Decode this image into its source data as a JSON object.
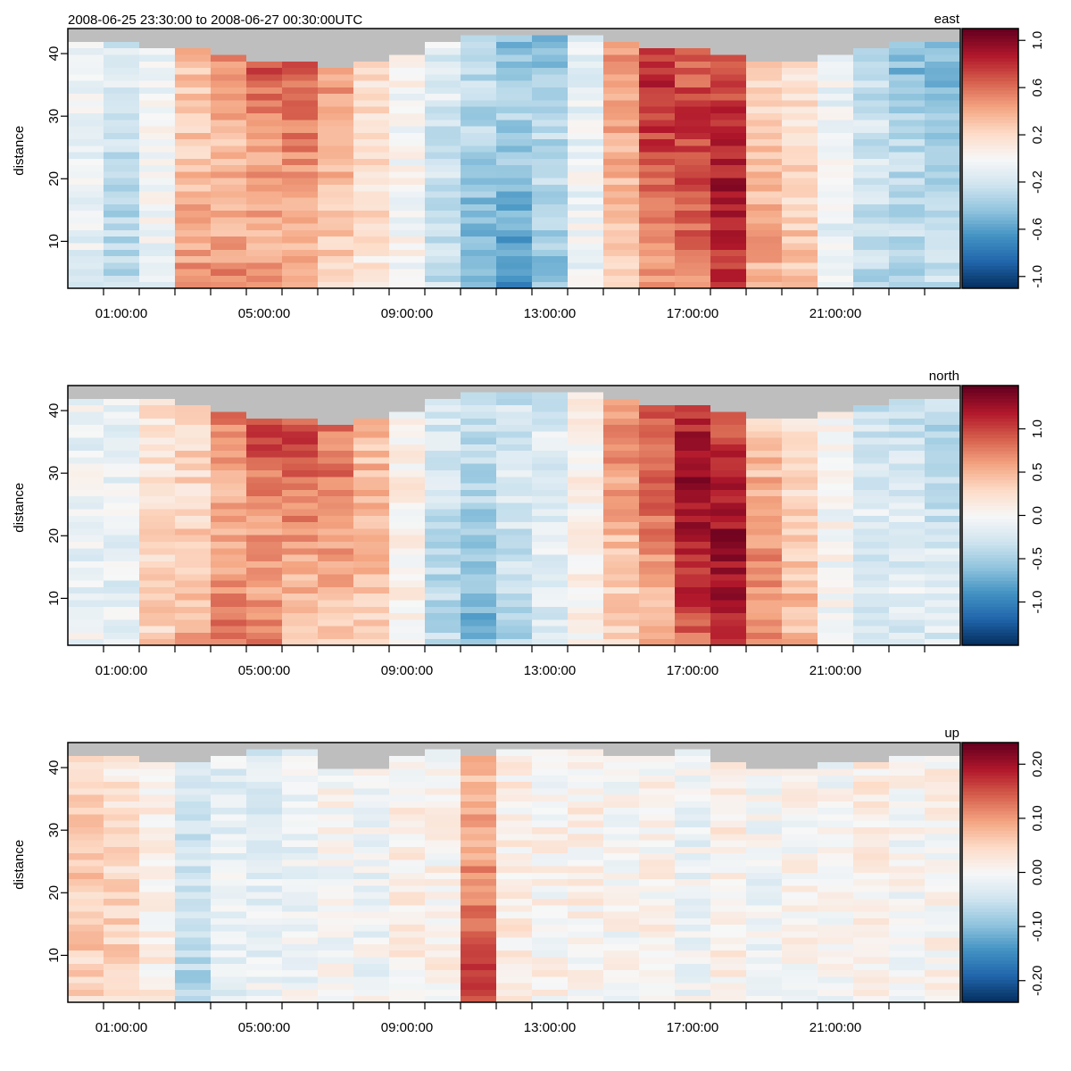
{
  "figure_title": "2008-06-25 23:30:00 to 2008-06-27 00:30:00UTC",
  "chart_data": [
    {
      "type": "heatmap",
      "name": "east",
      "title": "east",
      "ylabel": "distance",
      "xlabel": "",
      "time_ticks_hours": [
        0.5,
        1.5,
        2.5,
        3.5,
        4.5,
        5.5,
        6.5,
        7.5,
        8.5,
        9.5,
        10.5,
        11.5,
        12.5,
        13.5,
        14.5,
        15.5,
        16.5,
        17.5,
        18.5,
        19.5,
        20.5,
        21.5,
        22.5,
        23.5
      ],
      "time_labels": [
        {
          "hour": 1,
          "text": "01:00:00"
        },
        {
          "hour": 5,
          "text": "05:00:00"
        },
        {
          "hour": 9,
          "text": "09:00:00"
        },
        {
          "hour": 13,
          "text": "13:00:00"
        },
        {
          "hour": 17,
          "text": "17:00:00"
        },
        {
          "hour": 21,
          "text": "21:00:00"
        }
      ],
      "y_ticks": [
        10,
        20,
        30,
        40
      ],
      "ylim": [
        2.5,
        44
      ],
      "zlim": [
        -1.1,
        1.1
      ],
      "colorbar_ticks": [
        {
          "value": -1.0,
          "text": "-1.0"
        },
        {
          "value": -0.6,
          "text": "-0.6"
        },
        {
          "value": -0.2,
          "text": "-0.2"
        },
        {
          "value": 0.2,
          "text": "0.2"
        },
        {
          "value": 0.6,
          "text": "0.6"
        },
        {
          "value": 1.0,
          "text": "1.0"
        }
      ],
      "ensemble_count": 25,
      "ensemble_start_hour": -0.5,
      "column_profiles": [
        -0.1,
        -0.3,
        -0.05,
        0.55,
        0.7,
        0.8,
        0.7,
        0.45,
        0.2,
        0.0,
        -0.25,
        -0.55,
        -0.75,
        -0.6,
        -0.1,
        0.5,
        0.8,
        0.75,
        0.9,
        0.4,
        0.3,
        -0.1,
        -0.4,
        -0.55,
        -0.5
      ],
      "column_max_valid_distance": [
        42,
        42,
        41,
        41,
        40,
        39,
        39,
        38,
        39,
        40,
        42,
        43,
        43,
        43,
        43,
        42,
        41,
        41,
        40,
        39,
        39,
        40,
        41,
        42,
        42
      ]
    },
    {
      "type": "heatmap",
      "name": "north",
      "title": "north",
      "ylabel": "distance",
      "xlabel": "",
      "time_ticks_hours": [
        0.5,
        1.5,
        2.5,
        3.5,
        4.5,
        5.5,
        6.5,
        7.5,
        8.5,
        9.5,
        10.5,
        11.5,
        12.5,
        13.5,
        14.5,
        15.5,
        16.5,
        17.5,
        18.5,
        19.5,
        20.5,
        21.5,
        22.5,
        23.5
      ],
      "time_labels": [
        {
          "hour": 1,
          "text": "01:00:00"
        },
        {
          "hour": 5,
          "text": "05:00:00"
        },
        {
          "hour": 9,
          "text": "09:00:00"
        },
        {
          "hour": 13,
          "text": "13:00:00"
        },
        {
          "hour": 17,
          "text": "17:00:00"
        },
        {
          "hour": 21,
          "text": "21:00:00"
        }
      ],
      "y_ticks": [
        10,
        20,
        30,
        40
      ],
      "ylim": [
        2.5,
        44
      ],
      "zlim": [
        -1.5,
        1.5
      ],
      "colorbar_ticks": [
        {
          "value": -1.0,
          "text": "-1.0"
        },
        {
          "value": -0.5,
          "text": "-0.5"
        },
        {
          "value": 0.0,
          "text": "0.0"
        },
        {
          "value": 0.5,
          "text": "0.5"
        },
        {
          "value": 1.0,
          "text": "1.0"
        }
      ],
      "ensemble_count": 25,
      "ensemble_start_hour": -0.5,
      "column_profiles": [
        -0.1,
        -0.15,
        0.35,
        0.6,
        1.1,
        1.2,
        1.0,
        0.8,
        0.5,
        0.1,
        -0.4,
        -0.7,
        -0.5,
        -0.3,
        0.1,
        0.7,
        0.9,
        1.3,
        1.3,
        0.7,
        0.5,
        0.0,
        -0.4,
        -0.35,
        -0.4
      ],
      "column_max_valid_distance": [
        42,
        42,
        42,
        41,
        40,
        39,
        39,
        38,
        39,
        40,
        42,
        43,
        43,
        43,
        43,
        42,
        41,
        41,
        40,
        39,
        39,
        40,
        41,
        42,
        42
      ]
    },
    {
      "type": "heatmap",
      "name": "up",
      "title": "up",
      "ylabel": "distance",
      "xlabel": "",
      "time_ticks_hours": [
        0.5,
        1.5,
        2.5,
        3.5,
        4.5,
        5.5,
        6.5,
        7.5,
        8.5,
        9.5,
        10.5,
        11.5,
        12.5,
        13.5,
        14.5,
        15.5,
        16.5,
        17.5,
        18.5,
        19.5,
        20.5,
        21.5,
        22.5,
        23.5
      ],
      "time_labels": [
        {
          "hour": 1,
          "text": "01:00:00"
        },
        {
          "hour": 5,
          "text": "05:00:00"
        },
        {
          "hour": 9,
          "text": "09:00:00"
        },
        {
          "hour": 13,
          "text": "13:00:00"
        },
        {
          "hour": 17,
          "text": "17:00:00"
        },
        {
          "hour": 21,
          "text": "21:00:00"
        }
      ],
      "y_ticks": [
        10,
        20,
        30,
        40
      ],
      "ylim": [
        2.5,
        44
      ],
      "zlim": [
        -0.24,
        0.24
      ],
      "colorbar_ticks": [
        {
          "value": -0.2,
          "text": "-0.20"
        },
        {
          "value": -0.1,
          "text": "-0.10"
        },
        {
          "value": 0.0,
          "text": "0.00"
        },
        {
          "value": 0.1,
          "text": "0.10"
        },
        {
          "value": 0.2,
          "text": "0.20"
        }
      ],
      "ensemble_count": 25,
      "ensemble_start_hour": -0.5,
      "column_profiles": [
        0.06,
        0.05,
        0.02,
        -0.08,
        -0.03,
        -0.03,
        -0.02,
        0.0,
        -0.01,
        0.02,
        0.01,
        0.16,
        0.03,
        0.01,
        0.02,
        0.0,
        0.01,
        -0.01,
        0.02,
        -0.01,
        0.01,
        0.0,
        0.03,
        0.0,
        0.01
      ],
      "column_max_valid_distance": [
        42,
        42,
        41,
        41,
        42,
        43,
        43,
        40,
        40,
        42,
        43,
        42,
        43,
        43,
        43,
        42,
        42,
        43,
        41,
        40,
        40,
        41,
        41,
        42,
        42
      ]
    }
  ],
  "colors": {
    "scale": [
      "#053061",
      "#2166ac",
      "#4393c3",
      "#92c5de",
      "#d1e5f0",
      "#f7f7f7",
      "#fddbc7",
      "#f4a582",
      "#d6604d",
      "#b2182b",
      "#67001f"
    ],
    "missing": "#bebebe"
  }
}
